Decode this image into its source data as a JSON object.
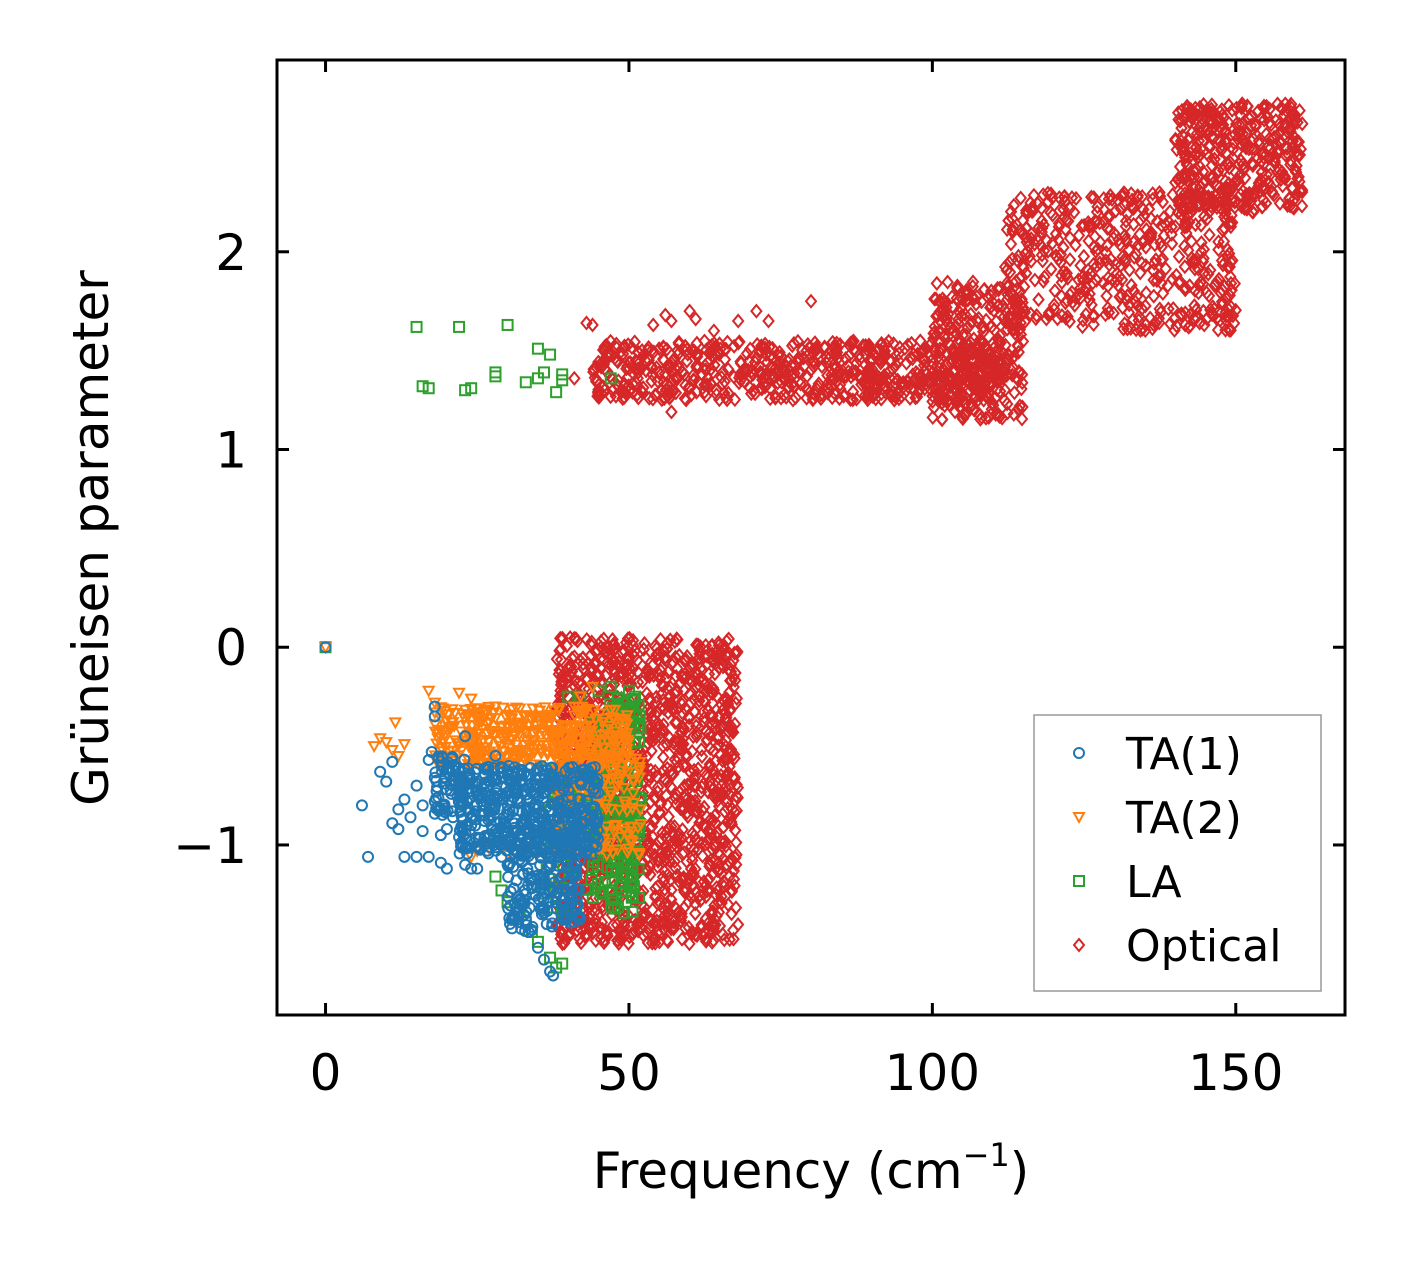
{
  "chart_data": {
    "type": "scatter",
    "title": "",
    "xlabel": "Frequency (cm",
    "xlabel_sup": "−1",
    "xlabel_close": ")",
    "ylabel": "Grüneisen parameter",
    "xlim": [
      -8,
      168
    ],
    "ylim": [
      -1.86,
      2.97
    ],
    "xticks": [
      0,
      50,
      100,
      150
    ],
    "xtick_labels": [
      "0",
      "50",
      "100",
      "150"
    ],
    "yticks": [
      -1,
      0,
      1,
      2
    ],
    "ytick_labels": [
      "−1",
      "0",
      "1",
      "2"
    ],
    "grid": false,
    "legend_position": "bottom-right",
    "series": [
      {
        "name": "TA(1)",
        "marker": "circle",
        "color": "#1f77b4",
        "points": [
          [
            0,
            0
          ],
          [
            6,
            -0.8
          ],
          [
            7,
            -1.06
          ],
          [
            9,
            -0.63
          ],
          [
            10,
            -0.68
          ],
          [
            11,
            -0.58
          ],
          [
            11,
            -0.89
          ],
          [
            12,
            -0.82
          ],
          [
            12,
            -0.92
          ],
          [
            13,
            -0.77
          ],
          [
            13,
            -1.06
          ],
          [
            14,
            -0.86
          ],
          [
            15,
            -1.06
          ],
          [
            15,
            -0.7
          ],
          [
            16,
            -0.8
          ],
          [
            16,
            -0.93
          ],
          [
            17,
            -0.57
          ],
          [
            17,
            -1.06
          ],
          [
            17.5,
            -0.53
          ],
          [
            18,
            -0.66
          ],
          [
            18,
            -0.78
          ],
          [
            18,
            -0.3
          ],
          [
            18,
            -0.35
          ],
          [
            19,
            -0.82
          ],
          [
            19,
            -0.95
          ],
          [
            19,
            -1.09
          ],
          [
            20,
            -0.92
          ],
          [
            20,
            -0.72
          ],
          [
            20,
            -1.12
          ],
          [
            21,
            -0.86
          ],
          [
            21,
            -0.62
          ],
          [
            22,
            -0.78
          ],
          [
            22,
            -0.96
          ],
          [
            23,
            -0.45
          ],
          [
            23,
            -1.1
          ],
          [
            23,
            -0.68
          ],
          [
            24,
            -1.12
          ],
          [
            24,
            -0.9
          ],
          [
            25,
            -1.12
          ],
          [
            25,
            -0.75
          ],
          [
            26,
            -0.85
          ],
          [
            26,
            -0.99
          ],
          [
            27,
            -1.01
          ],
          [
            28,
            -0.55
          ],
          [
            28,
            -0.93
          ],
          [
            29,
            -1.06
          ],
          [
            30,
            -1.1
          ],
          [
            31,
            -1.22
          ],
          [
            32,
            -1.3
          ],
          [
            33,
            -1.38
          ],
          [
            34,
            -1.43
          ],
          [
            35,
            -1.52
          ],
          [
            36,
            -1.58
          ],
          [
            37,
            -1.64
          ],
          [
            37.5,
            -1.66
          ]
        ],
        "clusters": [
          {
            "x_range": [
              18,
              23
            ],
            "y_range": [
              -0.55,
              -0.85
            ],
            "count": 60
          },
          {
            "x_range": [
              22,
              45
            ],
            "y_range": [
              -0.6,
              -1.05
            ],
            "count": 500
          },
          {
            "x_range": [
              30,
              42
            ],
            "y_range": [
              -0.9,
              -1.45
            ],
            "count": 200
          }
        ]
      },
      {
        "name": "TA(2)",
        "marker": "triangle-down",
        "color": "#ff7f0e",
        "points": [
          [
            0,
            0
          ],
          [
            8,
            -0.5
          ],
          [
            9,
            -0.46
          ],
          [
            10,
            -0.48
          ],
          [
            11,
            -0.52
          ],
          [
            11.5,
            -0.38
          ],
          [
            12,
            -0.55
          ],
          [
            13,
            -0.49
          ],
          [
            17,
            -0.22
          ],
          [
            18,
            -0.28
          ],
          [
            18,
            -0.33
          ],
          [
            19,
            -0.36
          ],
          [
            22,
            -0.23
          ],
          [
            24,
            -0.26
          ],
          [
            25,
            -0.31
          ],
          [
            27,
            -0.38
          ],
          [
            28,
            -0.3
          ],
          [
            30,
            -0.4
          ],
          [
            32,
            -0.31
          ],
          [
            33,
            -0.35
          ],
          [
            36,
            -0.39
          ],
          [
            37,
            -0.43
          ],
          [
            38,
            -0.46
          ],
          [
            40,
            -0.5
          ],
          [
            42,
            -0.25
          ],
          [
            44,
            -0.2
          ],
          [
            24,
            -1.06
          ],
          [
            25,
            -1.03
          ],
          [
            27,
            -1.02
          ],
          [
            30,
            -1.05
          ],
          [
            32,
            -1.02
          ]
        ],
        "clusters": [
          {
            "x_range": [
              18,
              50
            ],
            "y_range": [
              -0.3,
              -0.6
            ],
            "count": 400
          },
          {
            "x_range": [
              38,
              52
            ],
            "y_range": [
              -0.55,
              -1.05
            ],
            "count": 150
          }
        ]
      },
      {
        "name": "LA",
        "marker": "square",
        "color": "#2ca02c",
        "points": [
          [
            0,
            0
          ],
          [
            15,
            1.62
          ],
          [
            16,
            1.32
          ],
          [
            17,
            1.31
          ],
          [
            22,
            1.62
          ],
          [
            23,
            1.3
          ],
          [
            24,
            1.31
          ],
          [
            28,
            1.37
          ],
          [
            28,
            1.39
          ],
          [
            30,
            1.63
          ],
          [
            33,
            1.34
          ],
          [
            35,
            1.51
          ],
          [
            35,
            1.36
          ],
          [
            36,
            1.39
          ],
          [
            37,
            1.48
          ],
          [
            38,
            1.29
          ],
          [
            39,
            1.35
          ],
          [
            39,
            1.38
          ],
          [
            47,
            1.36
          ],
          [
            28,
            -1.16
          ],
          [
            29,
            -1.23
          ],
          [
            30,
            -1.29
          ],
          [
            32,
            -1.34
          ],
          [
            33,
            -1.39
          ],
          [
            34,
            -1.44
          ],
          [
            35,
            -1.49
          ],
          [
            37,
            -1.57
          ],
          [
            38,
            -1.62
          ],
          [
            39,
            -1.6
          ],
          [
            40,
            -0.25
          ],
          [
            42,
            -0.25
          ],
          [
            45,
            -0.22
          ],
          [
            47,
            -0.2
          ],
          [
            50,
            -0.22
          ],
          [
            51,
            -0.25
          ]
        ],
        "clusters": [
          {
            "x_range": [
              44,
              52
            ],
            "y_range": [
              -0.25,
              -1.3
            ],
            "count": 200
          },
          {
            "x_range": [
              36,
              52
            ],
            "y_range": [
              -0.6,
              -1.35
            ],
            "count": 120
          }
        ]
      },
      {
        "name": "Optical",
        "marker": "diamond",
        "color": "#d62728",
        "points": [
          [
            41,
            1.36
          ],
          [
            43,
            1.64
          ],
          [
            44,
            1.63
          ],
          [
            46,
            1.52
          ],
          [
            46,
            1.3
          ],
          [
            48,
            1.45
          ],
          [
            50,
            1.44
          ],
          [
            54,
            1.63
          ],
          [
            56,
            1.68
          ],
          [
            57,
            1.65
          ],
          [
            58,
            1.5
          ],
          [
            60,
            1.7
          ],
          [
            61,
            1.66
          ],
          [
            64,
            1.6
          ],
          [
            68,
            1.65
          ],
          [
            71,
            1.7
          ],
          [
            73,
            1.65
          ],
          [
            80,
            1.75
          ],
          [
            57,
            1.19
          ],
          [
            40,
            -0.52
          ],
          [
            41,
            -0.47
          ],
          [
            42,
            -0.55
          ]
        ],
        "clusters": [
          {
            "x_range": [
              44,
              112
            ],
            "y_range": [
              1.25,
              1.55
            ],
            "count": 700
          },
          {
            "x_range": [
              100,
              115
            ],
            "y_range": [
              1.15,
              1.85
            ],
            "count": 300
          },
          {
            "x_range": [
              112,
              150
            ],
            "y_range": [
              1.6,
              2.3
            ],
            "count": 500
          },
          {
            "x_range": [
              140,
              161
            ],
            "y_range": [
              2.2,
              2.75
            ],
            "count": 400
          },
          {
            "x_range": [
              38,
              68
            ],
            "y_range": [
              0.05,
              -1.5
            ],
            "count": 1400
          }
        ]
      }
    ]
  }
}
